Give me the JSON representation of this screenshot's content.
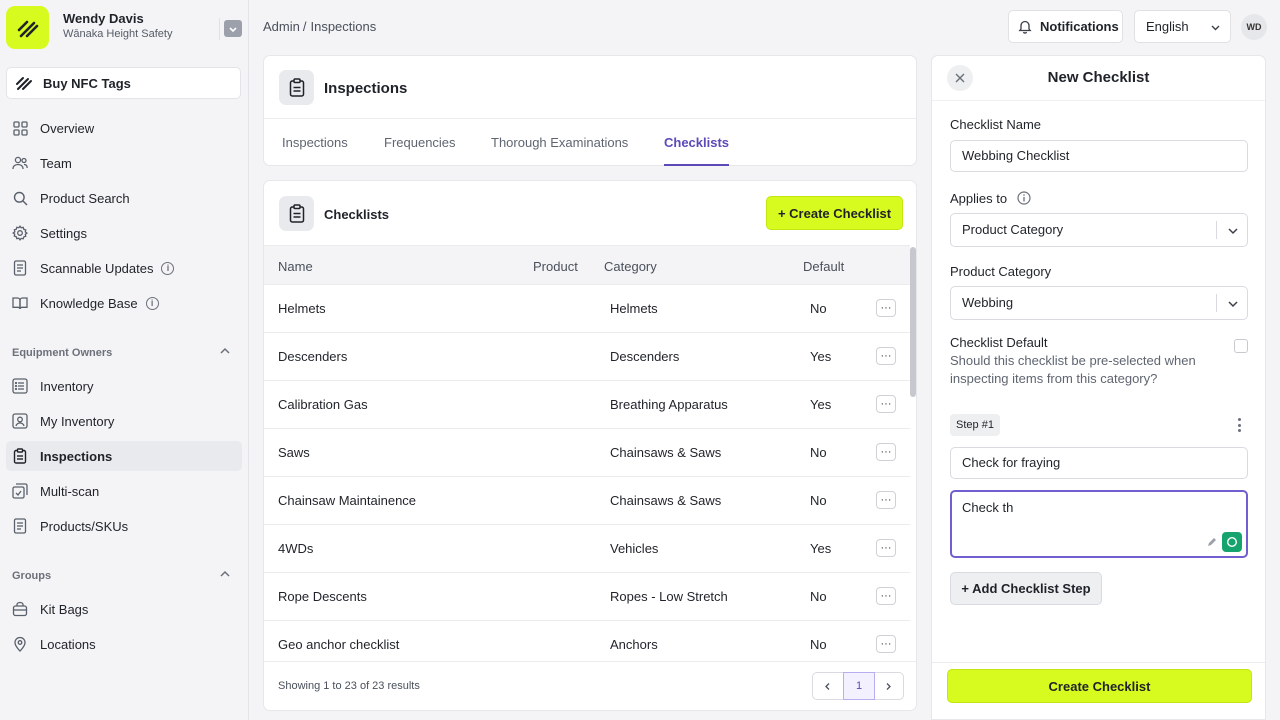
{
  "org": {
    "name": "Wendy Davis",
    "subtitle": "Wānaka Height Safety"
  },
  "sidebar": {
    "buy_label": "Buy NFC Tags",
    "top_items": [
      {
        "label": "Overview",
        "icon": "grid-icon"
      },
      {
        "label": "Team",
        "icon": "users-icon"
      },
      {
        "label": "Product Search",
        "icon": "search-icon"
      },
      {
        "label": "Settings",
        "icon": "gear-icon"
      },
      {
        "label": "Scannable Updates",
        "icon": "document-icon"
      },
      {
        "label": "Knowledge Base",
        "icon": "book-icon"
      }
    ],
    "section_equipment": "Equipment Owners",
    "equipment_items": [
      {
        "label": "Inventory",
        "icon": "list-icon"
      },
      {
        "label": "My Inventory",
        "icon": "user-list-icon"
      },
      {
        "label": "Inspections",
        "icon": "clipboard-icon"
      },
      {
        "label": "Multi-scan",
        "icon": "multiscan-icon"
      },
      {
        "label": "Products/SKUs",
        "icon": "document-icon"
      }
    ],
    "section_groups": "Groups",
    "group_items": [
      {
        "label": "Kit Bags",
        "icon": "bag-icon"
      },
      {
        "label": "Locations",
        "icon": "pin-icon"
      }
    ]
  },
  "breadcrumb": {
    "root": "Admin",
    "sep": "/",
    "current": "Inspections"
  },
  "topbar": {
    "notifications": "Notifications",
    "language": "English",
    "avatar": "WD"
  },
  "page": {
    "title": "Inspections",
    "tabs": [
      "Inspections",
      "Frequencies",
      "Thorough Examinations",
      "Checklists"
    ],
    "active_tab": "Checklists"
  },
  "checklists": {
    "title": "Checklists",
    "create_label": "+ Create Checklist",
    "columns": {
      "name": "Name",
      "product": "Product",
      "category": "Category",
      "default": "Default"
    },
    "rows": [
      {
        "name": "Helmets",
        "product": "",
        "category": "Helmets",
        "default": "No"
      },
      {
        "name": "Descenders",
        "product": "",
        "category": "Descenders",
        "default": "Yes"
      },
      {
        "name": "Calibration Gas",
        "product": "",
        "category": "Breathing Apparatus",
        "default": "Yes"
      },
      {
        "name": "Saws",
        "product": "",
        "category": "Chainsaws & Saws",
        "default": "No"
      },
      {
        "name": "Chainsaw Maintainence",
        "product": "",
        "category": "Chainsaws & Saws",
        "default": "No"
      },
      {
        "name": "4WDs",
        "product": "",
        "category": "Vehicles",
        "default": "Yes"
      },
      {
        "name": "Rope Descents",
        "product": "",
        "category": "Ropes - Low Stretch",
        "default": "No"
      },
      {
        "name": "Geo anchor checklist",
        "product": "",
        "category": "Anchors",
        "default": "No"
      }
    ],
    "showing": "Showing 1 to 23 of 23 results",
    "page": "1"
  },
  "panel": {
    "title": "New Checklist",
    "name_label": "Checklist Name",
    "name_value": "Webbing Checklist",
    "applies_label": "Applies to",
    "applies_value": "Product Category",
    "category_label": "Product Category",
    "category_value": "Webbing",
    "default_label": "Checklist Default",
    "default_help": "Should this checklist be pre-selected when inspecting items from this category?",
    "default_checked": false,
    "step_label": "Step #1",
    "step_title": "Check for fraying",
    "step_body": "Check th",
    "add_step": "+ Add Checklist Step",
    "submit": "Create Checklist"
  },
  "colors": {
    "accent_lime": "#d8fb1f",
    "accent_purple": "#5d49b8"
  }
}
